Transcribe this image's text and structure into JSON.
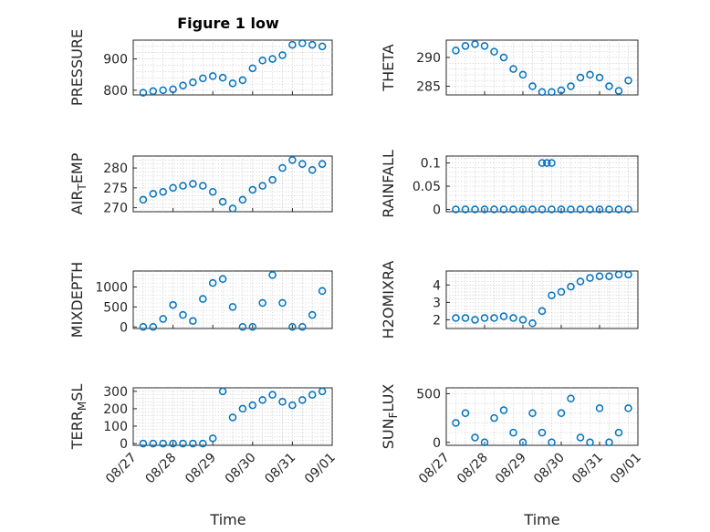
{
  "figure": {
    "title": "Figure 1 low",
    "xlabel": "Time",
    "marker_color": "#0072BD"
  },
  "chart_data": [
    {
      "type": "scatter",
      "ylabel": "PRESSURE",
      "xlim": [
        "08/27",
        "09/01"
      ],
      "ylim": [
        785,
        960
      ],
      "yticks": [
        800,
        900
      ],
      "x": [
        "08/27 06:00",
        "08/27 12:00",
        "08/27 18:00",
        "08/28 00:00",
        "08/28 06:00",
        "08/28 12:00",
        "08/28 18:00",
        "08/29 00:00",
        "08/29 06:00",
        "08/29 12:00",
        "08/29 18:00",
        "08/30 00:00",
        "08/30 06:00",
        "08/30 12:00",
        "08/30 18:00",
        "08/31 00:00",
        "08/31 06:00",
        "08/31 12:00",
        "08/31 18:00"
      ],
      "y": [
        792,
        797,
        800,
        803,
        815,
        825,
        838,
        845,
        840,
        822,
        832,
        870,
        895,
        900,
        912,
        945,
        950,
        945,
        940
      ]
    },
    {
      "type": "scatter",
      "ylabel": "THETA",
      "xlim": [
        "08/27",
        "09/01"
      ],
      "ylim": [
        283.5,
        293
      ],
      "yticks": [
        285,
        290
      ],
      "x": [
        "08/27 06:00",
        "08/27 12:00",
        "08/27 18:00",
        "08/28 00:00",
        "08/28 06:00",
        "08/28 12:00",
        "08/28 18:00",
        "08/29 00:00",
        "08/29 06:00",
        "08/29 12:00",
        "08/29 18:00",
        "08/30 00:00",
        "08/30 06:00",
        "08/30 12:00",
        "08/30 18:00",
        "08/31 00:00",
        "08/31 06:00",
        "08/31 12:00",
        "08/31 18:00"
      ],
      "y": [
        291.2,
        292.0,
        292.3,
        292.0,
        291.0,
        290.0,
        288.0,
        287.0,
        285.0,
        284.0,
        284.0,
        284.3,
        285.0,
        286.5,
        287.0,
        286.5,
        285.0,
        284.2,
        286.0
      ]
    },
    {
      "type": "scatter",
      "ylabel": "AIR_TEMP",
      "xlim": [
        "08/27",
        "09/01"
      ],
      "ylim": [
        269,
        283
      ],
      "yticks": [
        270,
        275,
        280
      ],
      "x": [
        "08/27 06:00",
        "08/27 12:00",
        "08/27 18:00",
        "08/28 00:00",
        "08/28 06:00",
        "08/28 12:00",
        "08/28 18:00",
        "08/29 00:00",
        "08/29 06:00",
        "08/29 12:00",
        "08/29 18:00",
        "08/30 00:00",
        "08/30 06:00",
        "08/30 12:00",
        "08/30 18:00",
        "08/31 00:00",
        "08/31 06:00",
        "08/31 12:00",
        "08/31 18:00"
      ],
      "y": [
        272.0,
        273.5,
        274.0,
        275.0,
        275.5,
        276.0,
        275.5,
        274.0,
        271.5,
        269.8,
        272.0,
        274.5,
        275.5,
        277.0,
        280.0,
        282.0,
        281.0,
        279.5,
        281.0
      ]
    },
    {
      "type": "scatter",
      "ylabel": "RAINFALL",
      "xlim": [
        "08/27",
        "09/01"
      ],
      "ylim": [
        -0.005,
        0.115
      ],
      "yticks": [
        0,
        0.05,
        0.1
      ],
      "x": [
        "08/27 06:00",
        "08/27 12:00",
        "08/27 18:00",
        "08/28 00:00",
        "08/28 06:00",
        "08/28 12:00",
        "08/28 18:00",
        "08/29 00:00",
        "08/29 06:00",
        "08/29 12:00",
        "08/29 18:00",
        "08/30 00:00",
        "08/30 06:00",
        "08/30 12:00",
        "08/30 18:00",
        "08/31 00:00",
        "08/31 06:00",
        "08/31 12:00",
        "08/31 18:00",
        "08/29 12:00",
        "08/29 15:00",
        "08/29 18:00"
      ],
      "y": [
        0,
        0,
        0,
        0,
        0,
        0,
        0,
        0,
        0,
        0,
        0,
        0,
        0,
        0,
        0,
        0,
        0,
        0,
        0,
        0.1,
        0.1,
        0.1
      ]
    },
    {
      "type": "scatter",
      "ylabel": "MIXDEPTH",
      "xlim": [
        "08/27",
        "09/01"
      ],
      "ylim": [
        -40,
        1400
      ],
      "yticks": [
        0,
        500,
        1000
      ],
      "x": [
        "08/27 06:00",
        "08/27 12:00",
        "08/27 18:00",
        "08/28 00:00",
        "08/28 06:00",
        "08/28 12:00",
        "08/28 18:00",
        "08/29 00:00",
        "08/29 06:00",
        "08/29 12:00",
        "08/29 18:00",
        "08/30 00:00",
        "08/30 06:00",
        "08/30 12:00",
        "08/30 18:00",
        "08/31 00:00",
        "08/31 06:00",
        "08/31 12:00",
        "08/31 18:00"
      ],
      "y": [
        0,
        0,
        200,
        550,
        300,
        150,
        700,
        1100,
        1200,
        500,
        0,
        0,
        600,
        1300,
        600,
        0,
        0,
        300,
        900
      ]
    },
    {
      "type": "scatter",
      "ylabel": "H2OMIXRA",
      "xlim": [
        "08/27",
        "09/01"
      ],
      "ylim": [
        1.5,
        4.8
      ],
      "yticks": [
        2,
        3,
        4
      ],
      "x": [
        "08/27 06:00",
        "08/27 12:00",
        "08/27 18:00",
        "08/28 00:00",
        "08/28 06:00",
        "08/28 12:00",
        "08/28 18:00",
        "08/29 00:00",
        "08/29 06:00",
        "08/29 12:00",
        "08/29 18:00",
        "08/30 00:00",
        "08/30 06:00",
        "08/30 12:00",
        "08/30 18:00",
        "08/31 00:00",
        "08/31 06:00",
        "08/31 12:00",
        "08/31 18:00"
      ],
      "y": [
        2.1,
        2.1,
        2.0,
        2.1,
        2.1,
        2.2,
        2.1,
        2.0,
        1.8,
        2.5,
        3.4,
        3.6,
        3.9,
        4.2,
        4.4,
        4.5,
        4.5,
        4.6,
        4.6
      ]
    },
    {
      "type": "scatter",
      "ylabel": "TERR_MSL",
      "xlim": [
        "08/27",
        "09/01"
      ],
      "ylim": [
        -10,
        320
      ],
      "yticks": [
        0,
        100,
        200,
        300
      ],
      "x": [
        "08/27 06:00",
        "08/27 12:00",
        "08/27 18:00",
        "08/28 00:00",
        "08/28 06:00",
        "08/28 12:00",
        "08/28 18:00",
        "08/29 00:00",
        "08/29 06:00",
        "08/29 12:00",
        "08/29 18:00",
        "08/30 00:00",
        "08/30 06:00",
        "08/30 12:00",
        "08/30 18:00",
        "08/31 00:00",
        "08/31 06:00",
        "08/31 12:00",
        "08/31 18:00"
      ],
      "y": [
        0,
        0,
        0,
        0,
        0,
        0,
        0,
        30,
        300,
        150,
        200,
        220,
        250,
        280,
        240,
        220,
        250,
        280,
        300
      ]
    },
    {
      "type": "scatter",
      "ylabel": "SUN_FLUX",
      "xlim": [
        "08/27",
        "09/01"
      ],
      "ylim": [
        -30,
        560
      ],
      "yticks": [
        0,
        500
      ],
      "x": [
        "08/27 06:00",
        "08/27 12:00",
        "08/27 18:00",
        "08/28 00:00",
        "08/28 06:00",
        "08/28 12:00",
        "08/28 18:00",
        "08/29 00:00",
        "08/29 06:00",
        "08/29 12:00",
        "08/29 18:00",
        "08/30 00:00",
        "08/30 06:00",
        "08/30 12:00",
        "08/30 18:00",
        "08/31 00:00",
        "08/31 06:00",
        "08/31 12:00",
        "08/31 18:00"
      ],
      "y": [
        200,
        300,
        50,
        0,
        250,
        330,
        100,
        0,
        300,
        100,
        0,
        300,
        450,
        50,
        0,
        350,
        0,
        100,
        350
      ]
    }
  ],
  "xaxis": {
    "ticks": [
      "08/27",
      "08/28",
      "08/29",
      "08/30",
      "08/31",
      "09/01"
    ]
  }
}
